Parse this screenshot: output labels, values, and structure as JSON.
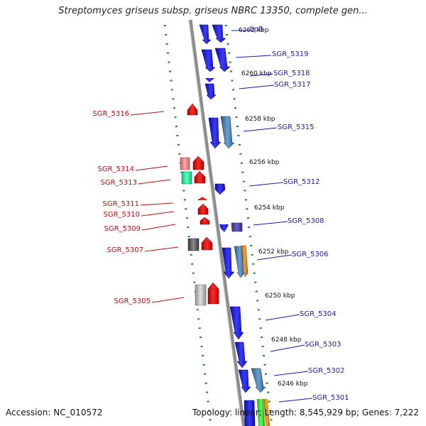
{
  "title": "Streptomyces griseus subsp. griseus NBRC 13350, complete gen...",
  "footer": {
    "accession": "Accession: NC_010572",
    "summary": "Topology: linear; Length: 8,545,929 bp; Genes: 7,222"
  },
  "colors": {
    "backbone": "#8c8c8c",
    "forward_strand": "#1a14e6",
    "reverse_strand": "#ee1111",
    "forward_label": "#1a1aaa",
    "reverse_label": "#bb1111",
    "dotted_guide": "#1a8a1a"
  },
  "position_markers": [
    {
      "label": "6262 kbp"
    },
    {
      "label": "6260 kbp"
    },
    {
      "label": "6258 kbp"
    },
    {
      "label": "6256 kbp"
    },
    {
      "label": "6254 kbp"
    },
    {
      "label": "6252 kbp"
    },
    {
      "label": "6250 kbp"
    },
    {
      "label": "6248 kbp"
    },
    {
      "label": "6246 kbp"
    }
  ],
  "forward_genes": [
    {
      "label": "lipB"
    },
    {
      "label": "SGR_5319"
    },
    {
      "label": "SGR_5318"
    },
    {
      "label": "SGR_5317"
    },
    {
      "label": "SGR_5315"
    },
    {
      "label": "SGR_5312"
    },
    {
      "label": "SGR_5308"
    },
    {
      "label": "SGR_5306"
    },
    {
      "label": "SGR_5304"
    },
    {
      "label": "SGR_5303"
    },
    {
      "label": "SGR_5302"
    },
    {
      "label": "SGR_5301"
    }
  ],
  "reverse_genes": [
    {
      "label": "SGR_5316"
    },
    {
      "label": "SGR_5314"
    },
    {
      "label": "SGR_5313"
    },
    {
      "label": "SGR_5311"
    },
    {
      "label": "SGR_5310"
    },
    {
      "label": "SGR_5309"
    },
    {
      "label": "SGR_5307"
    },
    {
      "label": "SGR_5305"
    }
  ]
}
